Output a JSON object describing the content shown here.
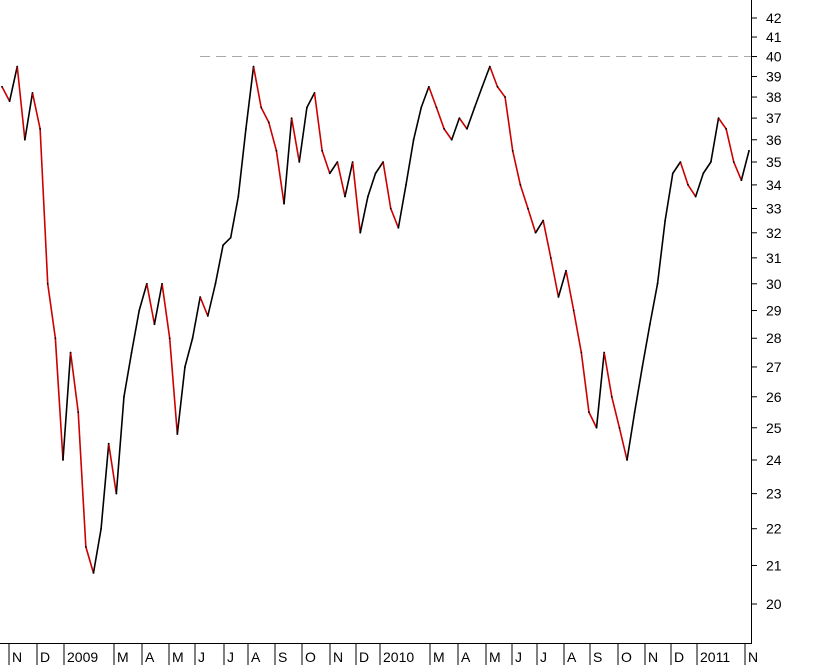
{
  "chart_data": {
    "type": "line",
    "title": "",
    "xlabel": "",
    "ylabel": "",
    "y_scale": "log",
    "ylim": [
      19,
      43
    ],
    "y_ticks": [
      20,
      21,
      22,
      23,
      24,
      25,
      26,
      27,
      28,
      29,
      30,
      31,
      32,
      33,
      34,
      35,
      36,
      37,
      38,
      39,
      40,
      41,
      42
    ],
    "x_labels": [
      "N",
      "D",
      "2009",
      "M",
      "A",
      "M",
      "J",
      "J",
      "A",
      "S",
      "O",
      "N",
      "D",
      "2010",
      "M",
      "A",
      "M",
      "J",
      "J",
      "A",
      "S",
      "O",
      "N",
      "D",
      "2011",
      "N"
    ],
    "reference_line": {
      "value": 40,
      "style": "dashed"
    },
    "colors": {
      "up": "#000000",
      "down": "#cc0000",
      "reference": "#aaaaaa",
      "axis": "#000000"
    },
    "series": [
      {
        "values": [
          38.5,
          37.8,
          39.5,
          36.0,
          38.2,
          36.5,
          30.0,
          28.0,
          24.0,
          27.5,
          25.5,
          21.5,
          20.8,
          22.0,
          24.5,
          23.0,
          26.0,
          27.5,
          29.0,
          30.0,
          28.5,
          30.0,
          28.0,
          24.8,
          27.0,
          28.0,
          29.5,
          28.8,
          30.0,
          31.5,
          31.8,
          33.5,
          36.5,
          39.5,
          37.5,
          36.8,
          35.5,
          33.2,
          37.0,
          35.0,
          37.5,
          38.2,
          35.5,
          34.5,
          35.0,
          33.5,
          35.0,
          32.0,
          33.5,
          34.5,
          35.0,
          33.0,
          32.2,
          34.0,
          36.0,
          37.5,
          38.5,
          37.5,
          36.5,
          36.0,
          37.0,
          36.5,
          37.5,
          38.5,
          39.5,
          38.5,
          38.0,
          35.5,
          34.0,
          33.0,
          32.0,
          32.5,
          31.0,
          29.5,
          30.5,
          29.0,
          27.5,
          25.5,
          25.0,
          27.5,
          26.0,
          25.0,
          24.0,
          25.5,
          27.0,
          28.5,
          30.0,
          32.5,
          34.5,
          35.0,
          34.0,
          33.5,
          34.5,
          35.0,
          37.0,
          36.5,
          35.0,
          34.2,
          35.5
        ]
      }
    ]
  }
}
